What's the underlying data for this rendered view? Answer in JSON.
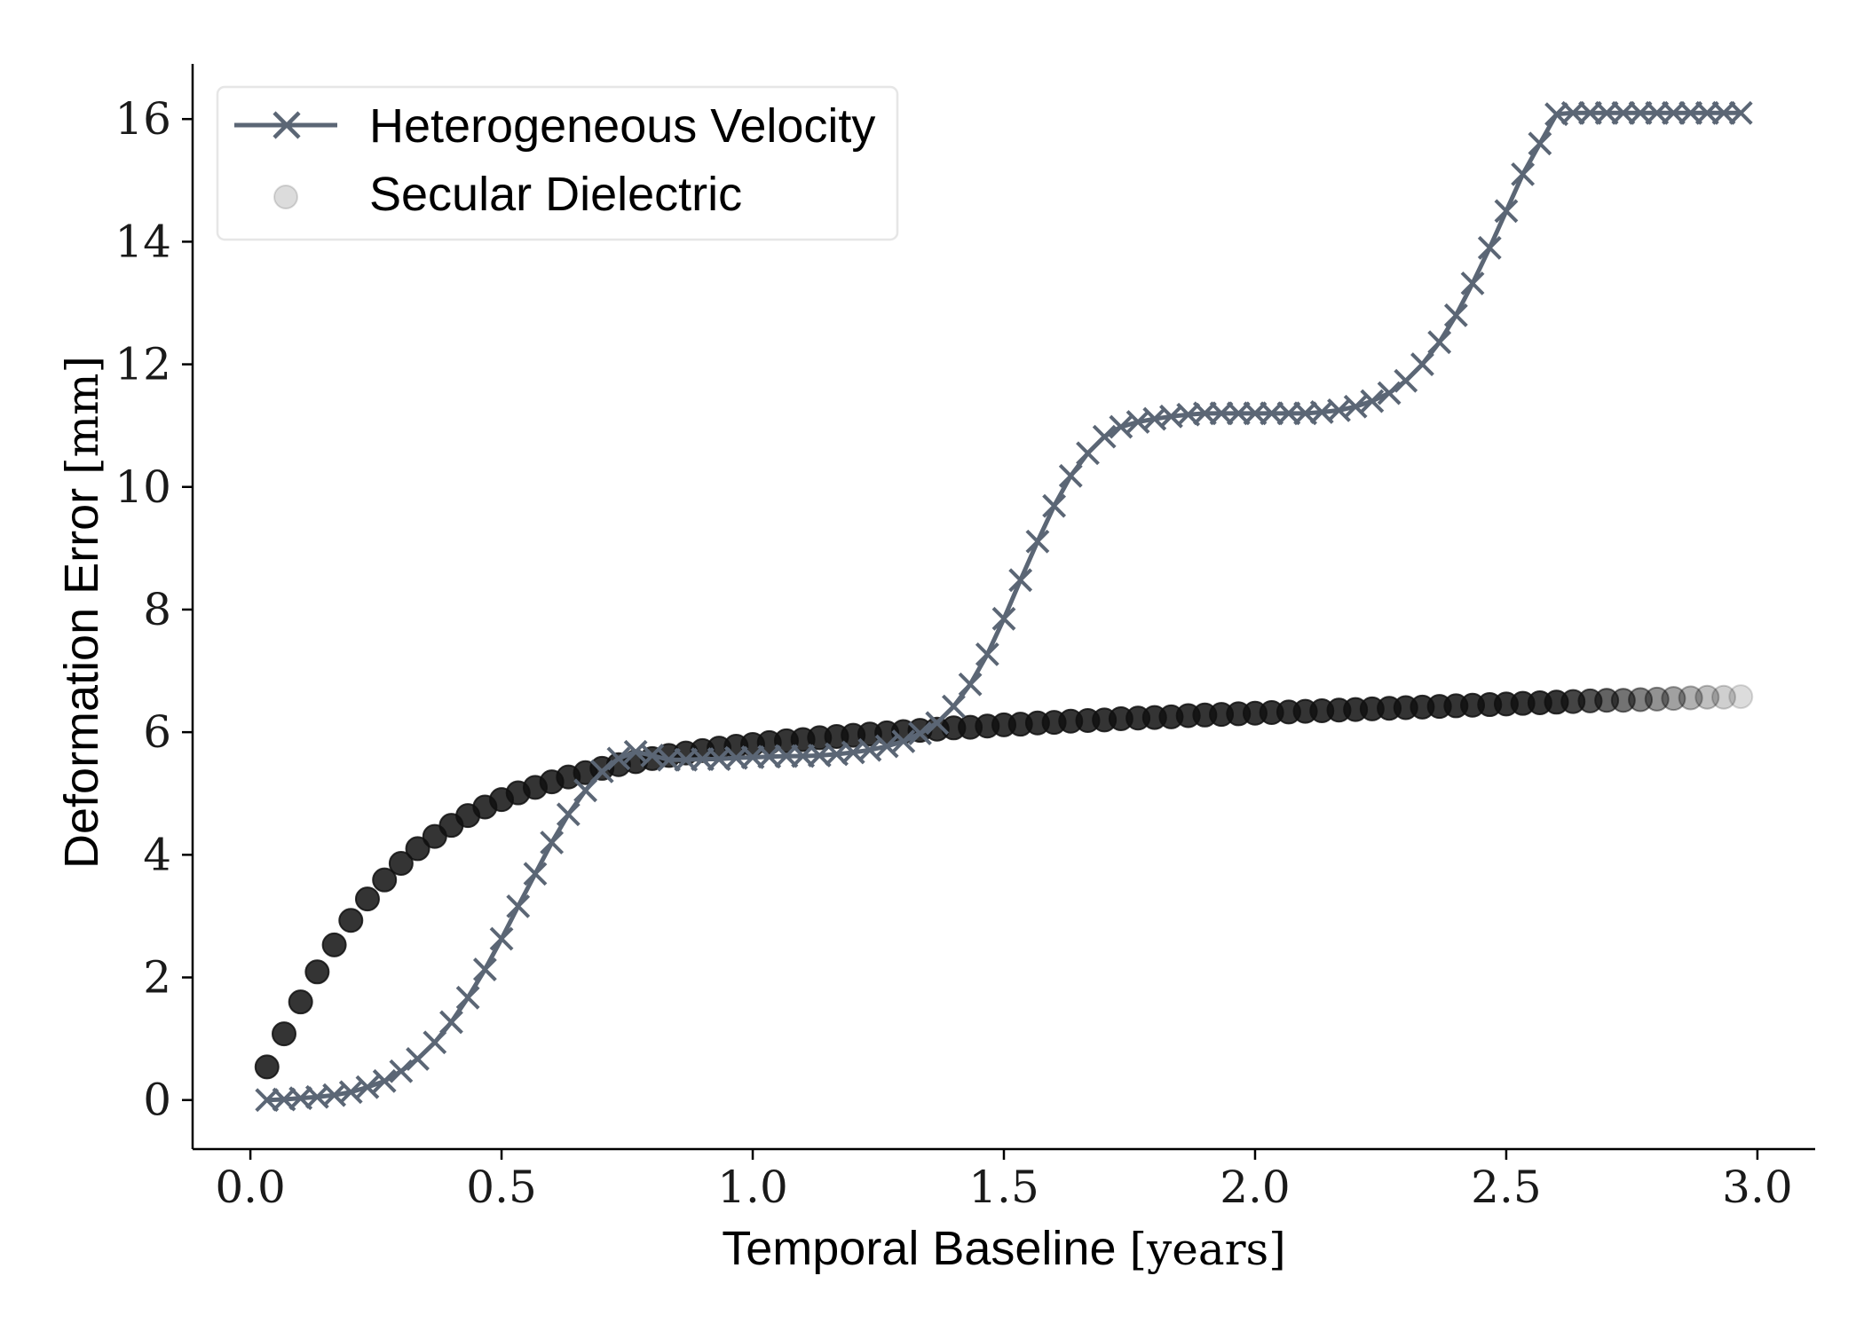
{
  "chart_data": {
    "type": "line",
    "xlabel": "Temporal Baseline",
    "xlabel_unit": "[years]",
    "ylabel": "Deformation Error",
    "ylabel_unit": "[mm]",
    "xlim": [
      -0.115,
      3.115
    ],
    "ylim": [
      -0.8,
      16.9
    ],
    "x_ticks": [
      0.0,
      0.5,
      1.0,
      1.5,
      2.0,
      2.5,
      3.0
    ],
    "x_tick_labels": [
      "0.0",
      "0.5",
      "1.0",
      "1.5",
      "2.0",
      "2.5",
      "3.0"
    ],
    "y_ticks": [
      0,
      2,
      4,
      6,
      8,
      10,
      12,
      14,
      16
    ],
    "y_tick_labels": [
      "0",
      "2",
      "4",
      "6",
      "8",
      "10",
      "12",
      "14",
      "16"
    ],
    "grid": false,
    "legend_position": "top-left",
    "series": [
      {
        "name": "Heterogeneous Velocity",
        "style": "line-with-x-markers",
        "color": "#5b6675",
        "x": [
          0.033,
          0.067,
          0.1,
          0.133,
          0.167,
          0.2,
          0.233,
          0.267,
          0.3,
          0.333,
          0.367,
          0.4,
          0.433,
          0.467,
          0.5,
          0.533,
          0.567,
          0.6,
          0.633,
          0.667,
          0.7,
          0.733,
          0.767,
          0.8,
          0.833,
          0.867,
          0.9,
          0.933,
          0.967,
          1.0,
          1.033,
          1.067,
          1.1,
          1.133,
          1.167,
          1.2,
          1.233,
          1.267,
          1.3,
          1.333,
          1.367,
          1.4,
          1.433,
          1.467,
          1.5,
          1.533,
          1.567,
          1.6,
          1.633,
          1.667,
          1.7,
          1.733,
          1.767,
          1.8,
          1.833,
          1.867,
          1.9,
          1.933,
          1.967,
          2.0,
          2.033,
          2.067,
          2.1,
          2.133,
          2.167,
          2.2,
          2.233,
          2.267,
          2.3,
          2.333,
          2.367,
          2.4,
          2.433,
          2.467,
          2.5,
          2.533,
          2.567,
          2.6,
          2.633,
          2.667,
          2.7,
          2.733,
          2.767,
          2.8,
          2.833,
          2.867,
          2.9,
          2.933,
          2.967
        ],
        "y": [
          0.0,
          0.01,
          0.03,
          0.05,
          0.08,
          0.13,
          0.21,
          0.31,
          0.47,
          0.67,
          0.94,
          1.27,
          1.67,
          2.13,
          2.63,
          3.16,
          3.69,
          4.2,
          4.66,
          5.05,
          5.36,
          5.57,
          5.68,
          5.62,
          5.55,
          5.55,
          5.56,
          5.56,
          5.58,
          5.59,
          5.6,
          5.61,
          5.61,
          5.62,
          5.64,
          5.67,
          5.71,
          5.77,
          5.85,
          5.98,
          6.15,
          6.42,
          6.78,
          7.27,
          7.85,
          8.48,
          9.11,
          9.69,
          10.18,
          10.55,
          10.82,
          10.98,
          11.06,
          11.11,
          11.15,
          11.18,
          11.2,
          11.2,
          11.2,
          11.2,
          11.2,
          11.2,
          11.2,
          11.22,
          11.25,
          11.31,
          11.4,
          11.53,
          11.73,
          12.0,
          12.36,
          12.8,
          13.32,
          13.9,
          14.5,
          15.1,
          15.6,
          16.08,
          16.1,
          16.1,
          16.1,
          16.1,
          16.1,
          16.1,
          16.1,
          16.1,
          16.1,
          16.1,
          16.1
        ]
      },
      {
        "name": "Secular Dielectric",
        "style": "scatter-circles",
        "color": "#111111",
        "x": [
          0.033,
          0.067,
          0.1,
          0.133,
          0.167,
          0.2,
          0.233,
          0.267,
          0.3,
          0.333,
          0.367,
          0.4,
          0.433,
          0.467,
          0.5,
          0.533,
          0.567,
          0.6,
          0.633,
          0.667,
          0.7,
          0.733,
          0.767,
          0.8,
          0.833,
          0.867,
          0.9,
          0.933,
          0.967,
          1.0,
          1.033,
          1.067,
          1.1,
          1.133,
          1.167,
          1.2,
          1.233,
          1.267,
          1.3,
          1.333,
          1.367,
          1.4,
          1.433,
          1.467,
          1.5,
          1.533,
          1.567,
          1.6,
          1.633,
          1.667,
          1.7,
          1.733,
          1.767,
          1.8,
          1.833,
          1.867,
          1.9,
          1.933,
          1.967,
          2.0,
          2.033,
          2.067,
          2.1,
          2.133,
          2.167,
          2.2,
          2.233,
          2.267,
          2.3,
          2.333,
          2.367,
          2.4,
          2.433,
          2.467,
          2.5,
          2.533,
          2.567,
          2.6,
          2.633,
          2.667,
          2.7,
          2.733,
          2.767,
          2.8,
          2.833,
          2.867,
          2.9,
          2.933,
          2.967
        ],
        "y": [
          0.54,
          1.08,
          1.6,
          2.09,
          2.53,
          2.93,
          3.28,
          3.59,
          3.86,
          4.1,
          4.3,
          4.48,
          4.64,
          4.78,
          4.9,
          5.01,
          5.1,
          5.19,
          5.27,
          5.34,
          5.41,
          5.47,
          5.52,
          5.57,
          5.62,
          5.66,
          5.7,
          5.74,
          5.77,
          5.8,
          5.83,
          5.86,
          5.88,
          5.91,
          5.93,
          5.95,
          5.97,
          5.99,
          6.01,
          6.03,
          6.05,
          6.07,
          6.08,
          6.1,
          6.12,
          6.13,
          6.15,
          6.16,
          6.18,
          6.19,
          6.2,
          6.22,
          6.23,
          6.24,
          6.25,
          6.27,
          6.28,
          6.29,
          6.3,
          6.31,
          6.32,
          6.33,
          6.34,
          6.35,
          6.36,
          6.37,
          6.38,
          6.39,
          6.4,
          6.41,
          6.42,
          6.43,
          6.44,
          6.45,
          6.46,
          6.47,
          6.48,
          6.49,
          6.5,
          6.51,
          6.52,
          6.52,
          6.53,
          6.54,
          6.55,
          6.56,
          6.57,
          6.57,
          6.58
        ],
        "opacity_note": "markers fade toward the right end"
      }
    ]
  }
}
